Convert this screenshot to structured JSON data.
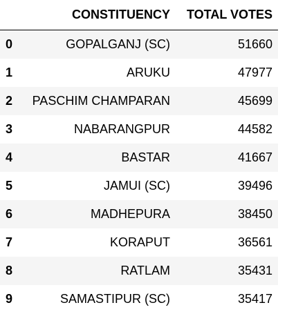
{
  "table": {
    "index_header": "",
    "columns": [
      "CONSTITUENCY",
      "TOTAL VOTES"
    ],
    "rows": [
      {
        "index": "0",
        "constituency": "GOPALGANJ (SC)",
        "total_votes": "51660"
      },
      {
        "index": "1",
        "constituency": "ARUKU",
        "total_votes": "47977"
      },
      {
        "index": "2",
        "constituency": "PASCHIM CHAMPARAN",
        "total_votes": "45699"
      },
      {
        "index": "3",
        "constituency": "NABARANGPUR",
        "total_votes": "44582"
      },
      {
        "index": "4",
        "constituency": "BASTAR",
        "total_votes": "41667"
      },
      {
        "index": "5",
        "constituency": "JAMUI (SC)",
        "total_votes": "39496"
      },
      {
        "index": "6",
        "constituency": "MADHEPURA",
        "total_votes": "38450"
      },
      {
        "index": "7",
        "constituency": "KORAPUT",
        "total_votes": "36561"
      },
      {
        "index": "8",
        "constituency": "RATLAM",
        "total_votes": "35431"
      },
      {
        "index": "9",
        "constituency": "SAMASTIPUR (SC)",
        "total_votes": "35417"
      }
    ]
  },
  "colors": {
    "stripe": "#f5f5f5",
    "background": "#ffffff",
    "text": "#000000"
  }
}
